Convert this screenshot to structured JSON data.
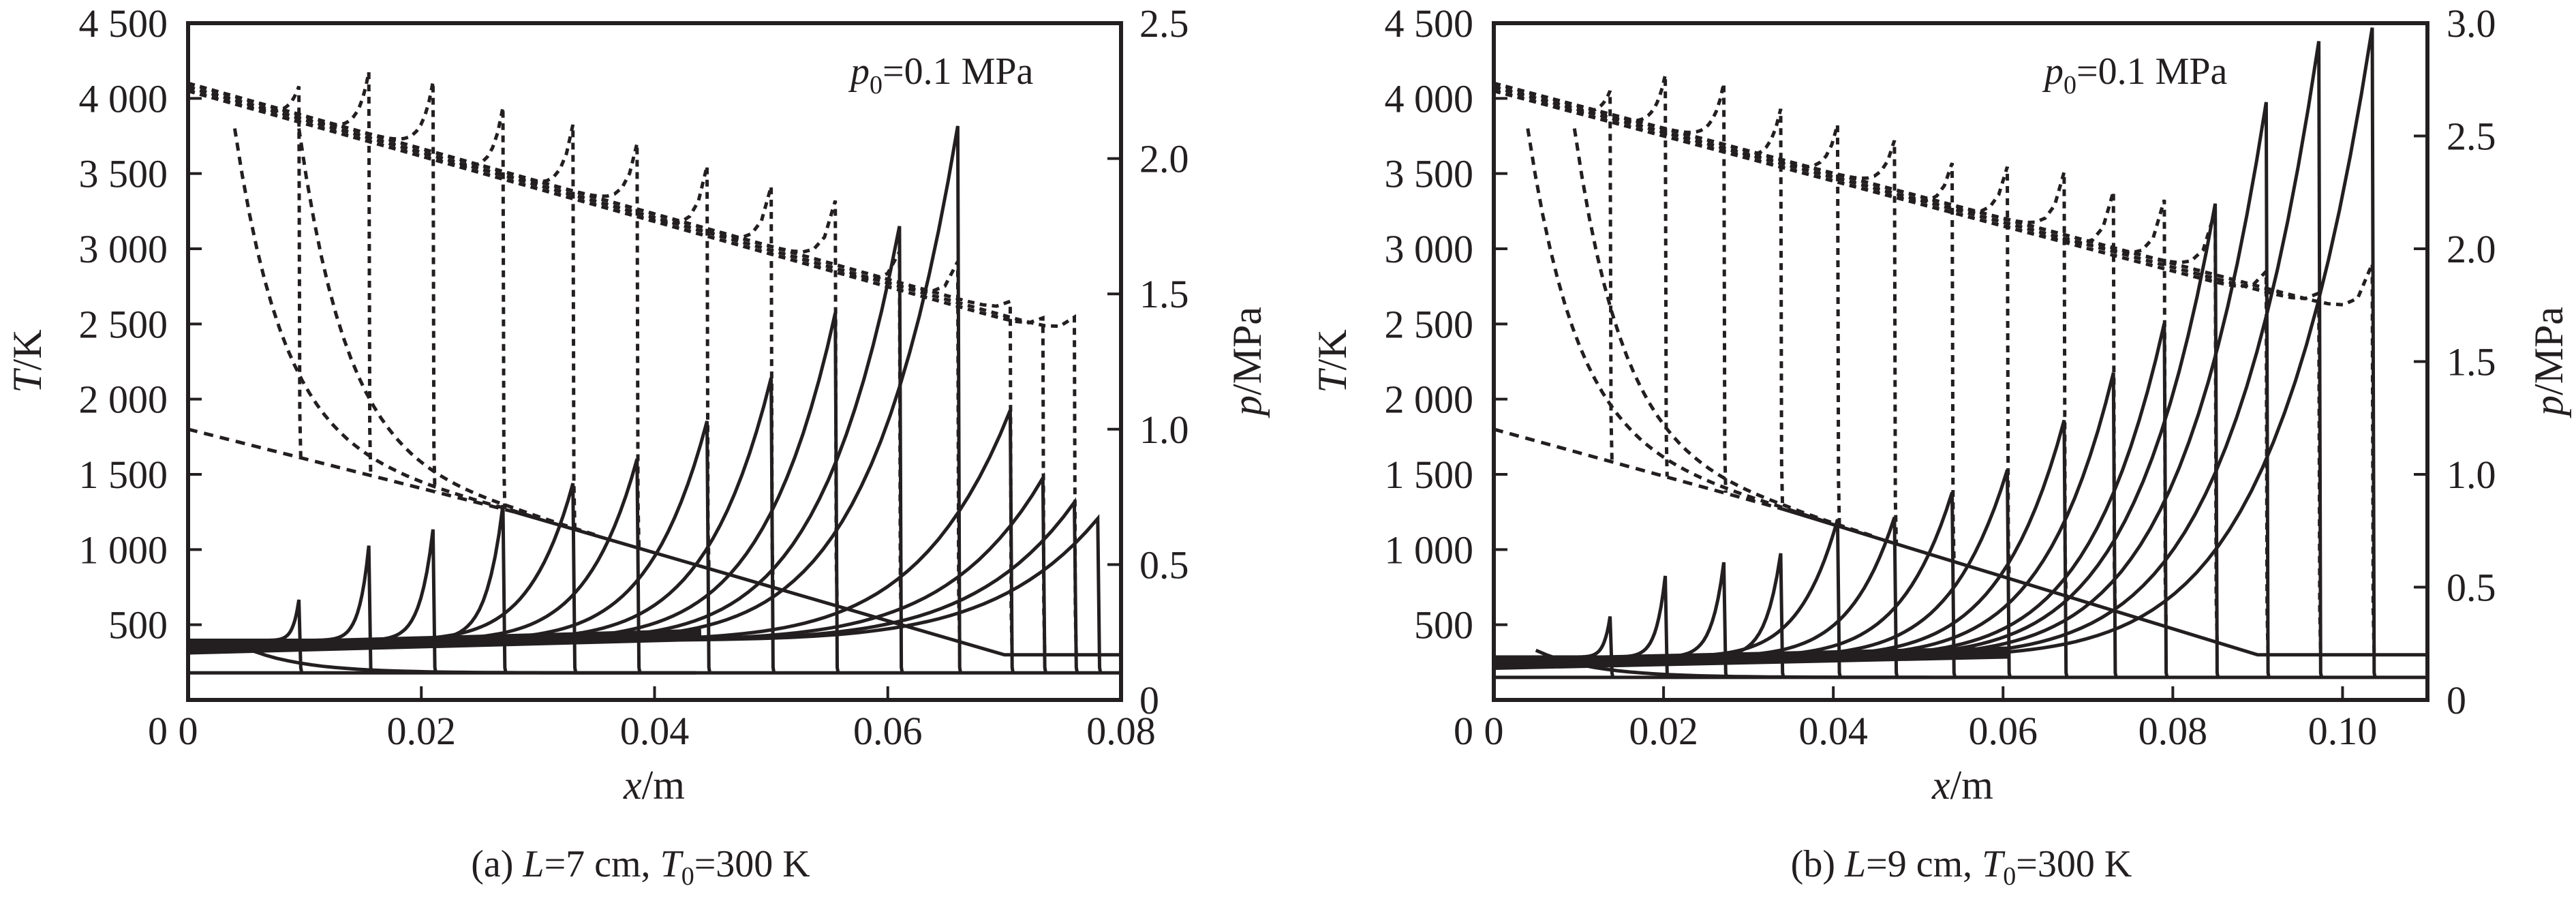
{
  "figure": {
    "panels": [
      "a",
      "b"
    ]
  },
  "chart_data": [
    {
      "type": "line",
      "panel": "a",
      "caption": {
        "prefix": "(a) ",
        "L_sym": "L",
        "L_val": "=7 cm, ",
        "T_sym": "T",
        "T_sub": "0",
        "T_val": "=300 K"
      },
      "annotation": {
        "sym": "p",
        "sub": "0",
        "text": "=0.1 MPa"
      },
      "xlabel": {
        "sym": "x",
        "unit": "/m"
      },
      "ylabel_left": {
        "sym": "T",
        "unit": "/K"
      },
      "ylabel_right": {
        "sym": "p",
        "unit": "/MPa"
      },
      "xlim": [
        0,
        0.08
      ],
      "ylim_left": [
        0,
        4500
      ],
      "ylim_right": [
        0,
        2.5
      ],
      "xticks": [
        0,
        0.02,
        0.04,
        0.06,
        0.08
      ],
      "xtick_labels": [
        "0",
        "0.02",
        "0.04",
        "0.06",
        "0.08"
      ],
      "yticks_left": [
        0,
        500,
        1000,
        1500,
        2000,
        2500,
        3000,
        3500,
        4000,
        4500
      ],
      "ytick_labels_left": [
        "0",
        "500",
        "1 000",
        "1 500",
        "2 000",
        "2 500",
        "3 000",
        "3 500",
        "4 000",
        "4 500"
      ],
      "yticks_right": [
        0,
        0.5,
        1.0,
        1.5,
        2.0,
        2.5
      ],
      "ytick_labels_right": [
        "0",
        "0.5",
        "1.0",
        "1.5",
        "2.0",
        "2.5"
      ],
      "grid": false,
      "series": [
        {
          "name": "pressure profiles (solid)",
          "axis": "right",
          "style": "solid",
          "front_x": [
            0.0095,
            0.0155,
            0.021,
            0.027,
            0.033,
            0.0385,
            0.0445,
            0.05,
            0.0555,
            0.061,
            0.066,
            0.0705,
            0.0733,
            0.076,
            0.078
          ],
          "peak_p": [
            0.37,
            0.57,
            0.63,
            0.72,
            0.8,
            0.89,
            1.03,
            1.19,
            1.43,
            1.75,
            2.12,
            1.07,
            0.82,
            0.73,
            0.67
          ],
          "base_p_upstream": 0.22,
          "ambient_p": 0.1
        },
        {
          "name": "temperature profiles (dotted)",
          "axis": "left",
          "style": "dotted",
          "front_x": [
            0.0095,
            0.0155,
            0.021,
            0.027,
            0.033,
            0.0385,
            0.0445,
            0.05,
            0.0555,
            0.061,
            0.066,
            0.0705,
            0.0733,
            0.076
          ],
          "peak_T": [
            4080,
            4150,
            4060,
            3940,
            3800,
            3650,
            3550,
            3390,
            3270,
            2980,
            2890,
            2600,
            2540,
            2520
          ],
          "T_at_x0": 4050,
          "T_trend_end": 2400
        },
        {
          "name": "initial temperature profile",
          "axis": "left",
          "points_x": [
            0,
            0.028,
            0.07,
            0.08
          ],
          "points_T": [
            1800,
            1250,
            300,
            300
          ]
        }
      ]
    },
    {
      "type": "line",
      "panel": "b",
      "caption": {
        "prefix": "(b) ",
        "L_sym": "L",
        "L_val": "=9 cm, ",
        "T_sym": "T",
        "T_sub": "0",
        "T_val": "=300 K"
      },
      "annotation": {
        "sym": "p",
        "sub": "0",
        "text": "=0.1 MPa"
      },
      "xlabel": {
        "sym": "x",
        "unit": "/m"
      },
      "ylabel_left": {
        "sym": "T",
        "unit": "/K"
      },
      "ylabel_right": {
        "sym": "p",
        "unit": "/MPa"
      },
      "xlim": [
        0,
        0.11
      ],
      "ylim_left": [
        0,
        4500
      ],
      "ylim_right": [
        0,
        3.0
      ],
      "xticks": [
        0,
        0.02,
        0.04,
        0.06,
        0.08,
        0.1
      ],
      "xtick_labels": [
        "0",
        "0.02",
        "0.04",
        "0.06",
        "0.08",
        "0.10"
      ],
      "yticks_left": [
        0,
        500,
        1000,
        1500,
        2000,
        2500,
        3000,
        3500,
        4000,
        4500
      ],
      "ytick_labels_left": [
        "0",
        "500",
        "1 000",
        "1 500",
        "2 000",
        "2 500",
        "3 000",
        "3 500",
        "4 000",
        "4 500"
      ],
      "yticks_right": [
        0,
        0.5,
        1.0,
        1.5,
        2.0,
        2.5,
        3.0
      ],
      "ytick_labels_right": [
        "0",
        "0.5",
        "1.0",
        "1.5",
        "2.0",
        "2.5",
        "3.0"
      ],
      "grid": false,
      "series": [
        {
          "name": "pressure profiles (solid)",
          "axis": "right",
          "style": "solid",
          "front_x": [
            0.0137,
            0.0202,
            0.0271,
            0.0338,
            0.0405,
            0.0472,
            0.054,
            0.0605,
            0.0672,
            0.073,
            0.079,
            0.085,
            0.091,
            0.0972,
            0.1035
          ],
          "peak_p": [
            0.37,
            0.55,
            0.61,
            0.65,
            0.8,
            0.81,
            0.92,
            1.02,
            1.24,
            1.45,
            1.67,
            2.2,
            2.65,
            2.92,
            2.98
          ],
          "base_p_upstream": 0.19,
          "ambient_p": 0.1
        },
        {
          "name": "temperature profiles (dotted)",
          "axis": "left",
          "style": "dotted",
          "front_x": [
            0.0137,
            0.0202,
            0.0271,
            0.0338,
            0.0405,
            0.0472,
            0.054,
            0.0605,
            0.0672,
            0.073,
            0.079,
            0.085,
            0.091,
            0.0972,
            0.1035
          ],
          "peak_T": [
            4050,
            4130,
            4050,
            3930,
            3800,
            3670,
            3570,
            3520,
            3460,
            3380,
            3300,
            3200,
            2850,
            2680,
            2850
          ],
          "T_at_x0": 4050,
          "T_trend_end": 2500
        },
        {
          "name": "initial temperature profile",
          "axis": "left",
          "points_x": [
            0,
            0.034,
            0.09,
            0.11
          ],
          "points_T": [
            1800,
            1270,
            300,
            300
          ]
        }
      ]
    }
  ],
  "colors": {
    "ink": "#231f20",
    "background": "#ffffff"
  }
}
